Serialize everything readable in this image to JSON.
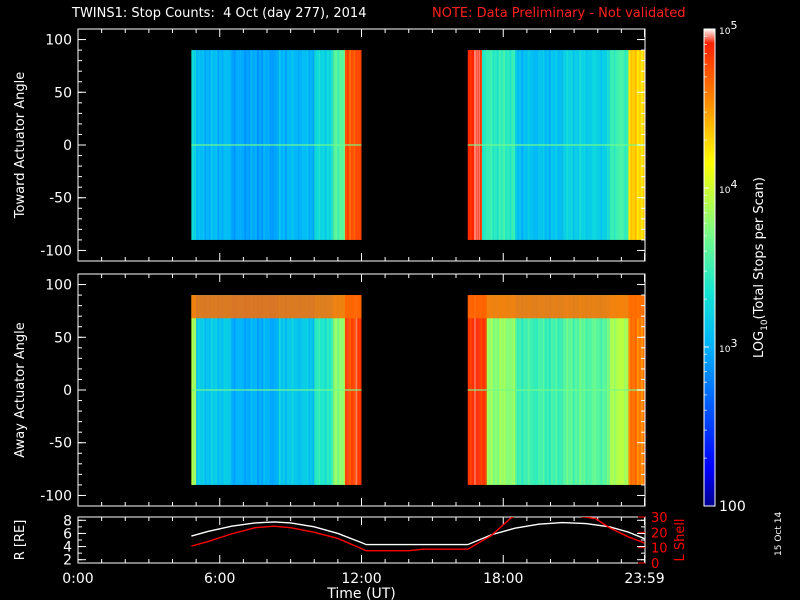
{
  "header": {
    "title": "TWINS1: Stop Counts:  4 Oct (day 277), 2014",
    "note": "NOTE: Data Preliminary - Not validated"
  },
  "side_date": "15 Oct 14",
  "colors": {
    "note": "#ff2020",
    "r_line": "#ffffff",
    "lshell_line": "#ff0000"
  },
  "chart_data": [
    {
      "type": "heatmap",
      "panel": "top",
      "ylabel": "Toward Actuator Angle",
      "ylim": [
        -110,
        110
      ],
      "yticks": [
        "100",
        "50",
        "0",
        "-50",
        "-100"
      ],
      "ytick_values": [
        100,
        50,
        0,
        -50,
        -100
      ],
      "xlim": [
        0,
        24
      ],
      "x_unit": "hours UT",
      "angle_range": [
        -90,
        90
      ],
      "data_intervals": [
        [
          4.8,
          12.0
        ],
        [
          16.5,
          23.98
        ]
      ],
      "colorscale_log10": [
        2,
        5
      ],
      "intensity_profile_log10": [
        {
          "start": 4.8,
          "end": 5.0,
          "value": 3.3
        },
        {
          "start": 5.0,
          "end": 6.5,
          "value": 3.05
        },
        {
          "start": 6.5,
          "end": 8.5,
          "value": 2.95
        },
        {
          "start": 8.5,
          "end": 10.0,
          "value": 3.05
        },
        {
          "start": 10.0,
          "end": 10.8,
          "value": 3.25
        },
        {
          "start": 10.8,
          "end": 11.3,
          "value": 3.6
        },
        {
          "start": 11.3,
          "end": 12.0,
          "value": 4.75
        },
        {
          "start": 16.5,
          "end": 17.1,
          "value": 4.9
        },
        {
          "start": 17.1,
          "end": 18.5,
          "value": 3.45
        },
        {
          "start": 18.5,
          "end": 20.5,
          "value": 3.1
        },
        {
          "start": 20.5,
          "end": 22.5,
          "value": 3.2
        },
        {
          "start": 22.5,
          "end": 23.3,
          "value": 3.5
        },
        {
          "start": 23.3,
          "end": 23.98,
          "value": 4.3
        }
      ]
    },
    {
      "type": "heatmap",
      "panel": "middle",
      "ylabel": "Away Actuator Angle",
      "ylim": [
        -110,
        110
      ],
      "yticks": [
        "100",
        "50",
        "0",
        "-50",
        "-100"
      ],
      "ytick_values": [
        100,
        50,
        0,
        -50,
        -100
      ],
      "xlim": [
        0,
        24
      ],
      "x_unit": "hours UT",
      "angle_range": [
        -90,
        90
      ],
      "data_intervals": [
        [
          4.8,
          12.0
        ],
        [
          16.5,
          23.98
        ]
      ],
      "colorscale_log10": [
        2,
        5
      ],
      "high_band_angle": [
        68,
        90
      ],
      "intensity_profile_log10": [
        {
          "start": 4.8,
          "end": 5.0,
          "value": 3.9
        },
        {
          "start": 5.0,
          "end": 6.5,
          "value": 3.15
        },
        {
          "start": 6.5,
          "end": 8.5,
          "value": 3.0
        },
        {
          "start": 8.5,
          "end": 10.0,
          "value": 3.15
        },
        {
          "start": 10.0,
          "end": 10.8,
          "value": 3.4
        },
        {
          "start": 10.8,
          "end": 11.3,
          "value": 3.8
        },
        {
          "start": 11.3,
          "end": 12.0,
          "value": 4.8
        },
        {
          "start": 16.5,
          "end": 17.3,
          "value": 4.85
        },
        {
          "start": 17.3,
          "end": 18.5,
          "value": 3.8
        },
        {
          "start": 18.5,
          "end": 20.5,
          "value": 3.5
        },
        {
          "start": 20.5,
          "end": 22.5,
          "value": 3.6
        },
        {
          "start": 22.5,
          "end": 23.3,
          "value": 3.9
        },
        {
          "start": 23.3,
          "end": 23.98,
          "value": 4.6
        }
      ]
    },
    {
      "type": "line",
      "panel": "bottom",
      "ylabel": "R [RE]",
      "ylabel_right": "L Shell",
      "ylim": [
        1.5,
        8.5
      ],
      "yticks": [
        "8",
        "6",
        "4",
        "2"
      ],
      "ytick_values": [
        8,
        6,
        4,
        2
      ],
      "y2lim": [
        0,
        30
      ],
      "y2ticks": [
        "30",
        "20",
        "10",
        "0"
      ],
      "y2tick_values": [
        30,
        20,
        10,
        0
      ],
      "xlim": [
        0,
        24
      ],
      "xticks": [
        "0:00",
        "6:00",
        "12:00",
        "18:00",
        "23:59"
      ],
      "xtick_values": [
        0,
        6,
        12,
        18,
        23.98
      ],
      "xlabel": "Time (UT)",
      "series": [
        {
          "axis": "left",
          "x": [
            4.8,
            5.5,
            6.5,
            7.5,
            8.3,
            9.0,
            10.0,
            11.0,
            12.0,
            12.2,
            13,
            14,
            15,
            16.5,
            17.5,
            18.5,
            19.5,
            20.5,
            21.5,
            22.5,
            23.3,
            23.98
          ],
          "y": [
            5.6,
            6.3,
            7.1,
            7.6,
            7.75,
            7.6,
            7.0,
            6.0,
            4.6,
            4.3,
            4.3,
            4.3,
            4.3,
            4.3,
            5.8,
            6.8,
            7.4,
            7.65,
            7.5,
            7.0,
            6.2,
            5.2
          ]
        },
        {
          "axis": "right",
          "x": [
            4.8,
            5.5,
            6.5,
            7.5,
            8.3,
            9.0,
            10.0,
            11.0,
            11.9,
            12.2,
            13,
            14,
            14.6,
            15.5,
            16.5,
            17.5,
            18.3,
            18.5
          ],
          "y": [
            11,
            14,
            19,
            23,
            24,
            23,
            20,
            16,
            10,
            8,
            8,
            8,
            9,
            9,
            9,
            18,
            29,
            31
          ]
        },
        {
          "axis": "right",
          "x": [
            21.0,
            21.9,
            22.5,
            23.3,
            23.98
          ],
          "y": [
            31,
            29,
            23,
            17,
            13
          ]
        }
      ]
    },
    {
      "type": "colorbar",
      "ylabel": "LOG10(Total Stops per Scan)",
      "scale": "log",
      "range": [
        100,
        100000
      ],
      "tick_values": [
        100,
        1000,
        10000,
        100000
      ],
      "tick_labels": [
        "100",
        "10^3",
        "10^4",
        "10^5"
      ]
    }
  ]
}
